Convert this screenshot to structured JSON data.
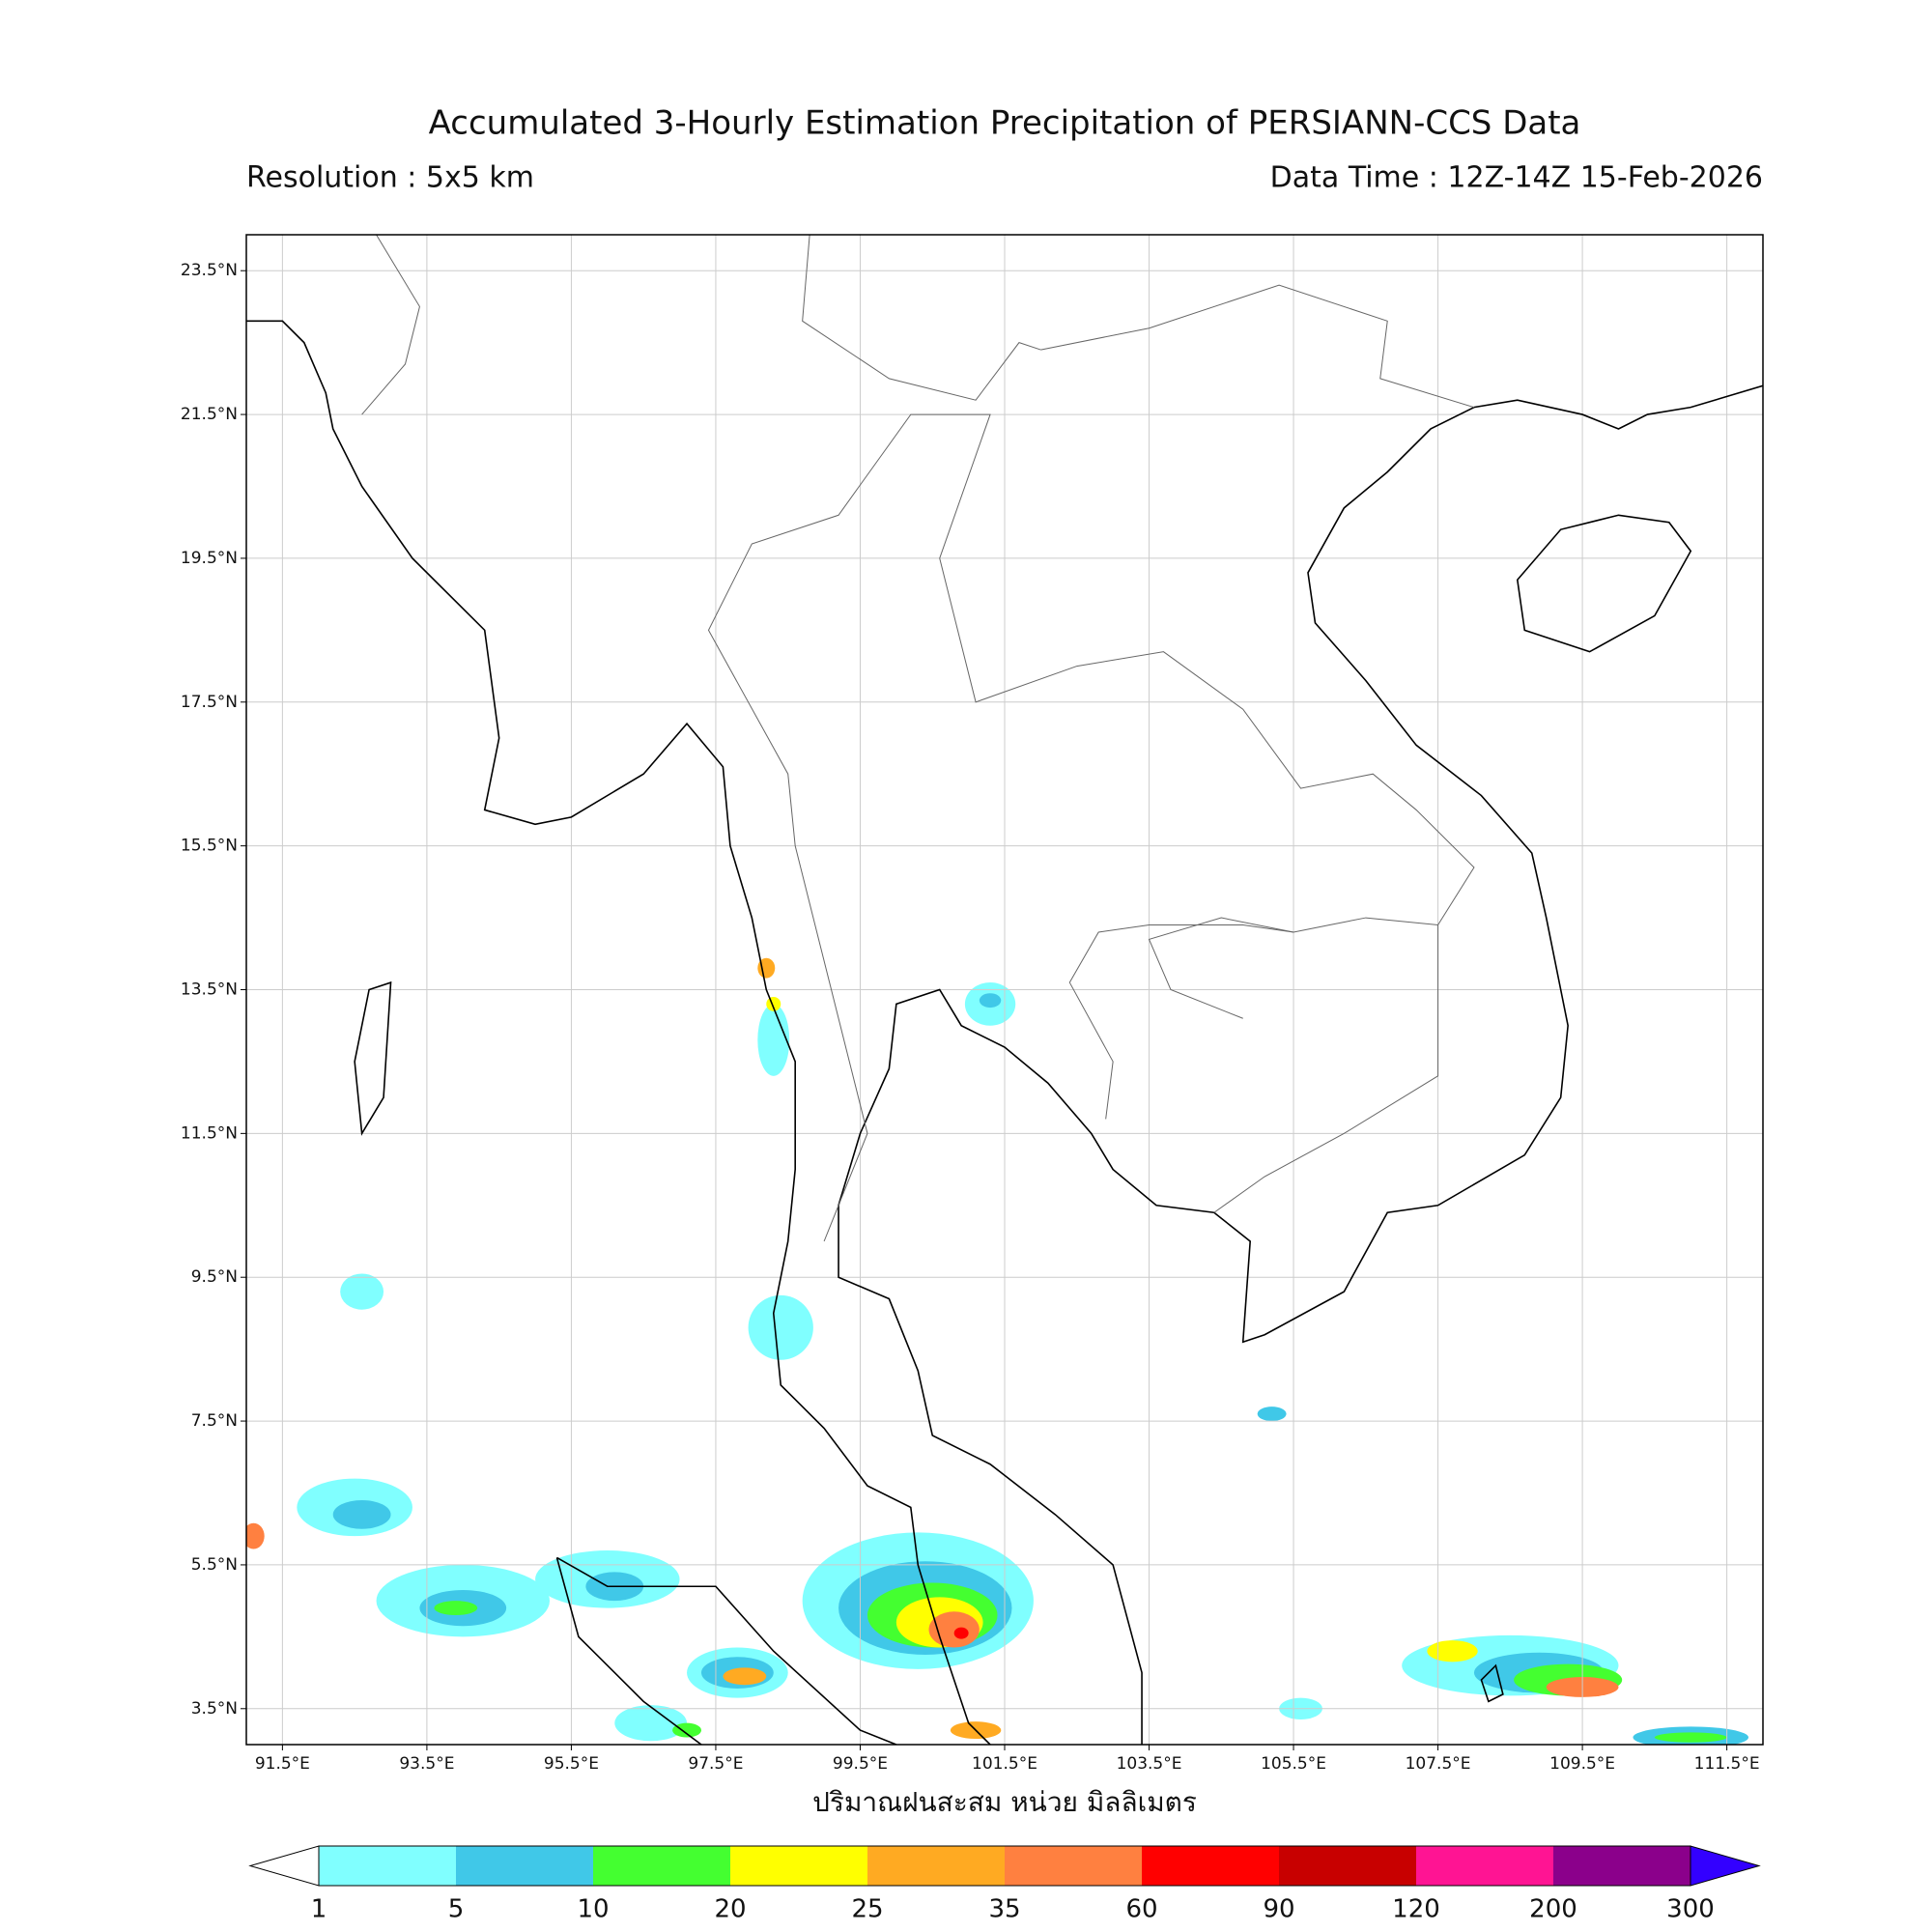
{
  "header": {
    "title": "Accumulated 3-Hourly Estimation Precipitation of PERSIANN-CCS Data",
    "resolution": "Resolution : 5x5 km",
    "data_time": "Data Time : 12Z-14Z 15-Feb-2026"
  },
  "map": {
    "lonlim": [
      91,
      112
    ],
    "latlim": [
      3,
      24
    ],
    "grid": true,
    "lon_ticks": [
      {
        "value": 91.5,
        "label": "91.5°E"
      },
      {
        "value": 93.5,
        "label": "93.5°E"
      },
      {
        "value": 95.5,
        "label": "95.5°E"
      },
      {
        "value": 97.5,
        "label": "97.5°E"
      },
      {
        "value": 99.5,
        "label": "99.5°E"
      },
      {
        "value": 101.5,
        "label": "101.5°E"
      },
      {
        "value": 103.5,
        "label": "103.5°E"
      },
      {
        "value": 105.5,
        "label": "105.5°E"
      },
      {
        "value": 107.5,
        "label": "107.5°E"
      },
      {
        "value": 109.5,
        "label": "109.5°E"
      },
      {
        "value": 111.5,
        "label": "111.5°E"
      }
    ],
    "lat_ticks": [
      {
        "value": 23.5,
        "label": "23.5°N"
      },
      {
        "value": 21.5,
        "label": "21.5°N"
      },
      {
        "value": 19.5,
        "label": "19.5°N"
      },
      {
        "value": 17.5,
        "label": "17.5°N"
      },
      {
        "value": 15.5,
        "label": "15.5°N"
      },
      {
        "value": 13.5,
        "label": "13.5°N"
      },
      {
        "value": 11.5,
        "label": "11.5°N"
      },
      {
        "value": 9.5,
        "label": "9.5°N"
      },
      {
        "value": 7.5,
        "label": "7.5°N"
      },
      {
        "value": 5.5,
        "label": "5.5°N"
      },
      {
        "value": 3.5,
        "label": "3.5°N"
      }
    ],
    "xlabel": "ปริมาณฝนสะสม หน่วย มิลลิเมตร"
  },
  "colorbar": {
    "levels": [
      1,
      5,
      10,
      20,
      25,
      35,
      60,
      90,
      120,
      200,
      300
    ],
    "colors": [
      "#80ffff",
      "#40c8e8",
      "#44ff30",
      "#ffff00",
      "#ffaa22",
      "#ff8040",
      "#ff0000",
      "#c80000",
      "#ff1493",
      "#8b008b"
    ],
    "under_color": "#ffffff",
    "over_color": "#3300ff"
  }
}
